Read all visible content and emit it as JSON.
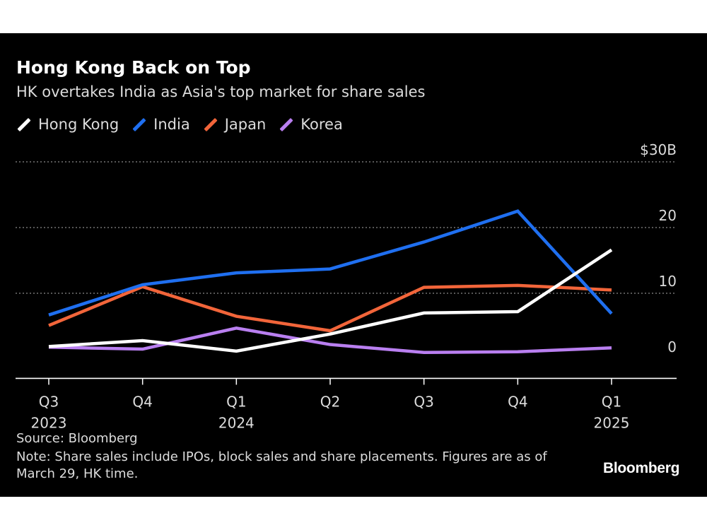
{
  "header": {
    "title": "Hong Kong Back on Top",
    "subtitle": "HK overtakes India as Asia's top market for share sales"
  },
  "footer": {
    "source": "Source: Bloomberg",
    "note": "Note: Share sales include IPOs, block sales and share placements. Figures are as of March 29, HK time.",
    "brand": "Bloomberg"
  },
  "chart_data": {
    "type": "line",
    "title": "Hong Kong Back on Top",
    "subtitle": "HK overtakes India as Asia's top market for share sales",
    "categories": [
      "Q3 2023",
      "Q4 2023",
      "Q1 2024",
      "Q2 2024",
      "Q3 2024",
      "Q4 2024",
      "Q1 2025"
    ],
    "x_tick_labels": [
      {
        "top": "Q3",
        "bottom": "2023"
      },
      {
        "top": "Q4",
        "bottom": ""
      },
      {
        "top": "Q1",
        "bottom": "2024"
      },
      {
        "top": "Q2",
        "bottom": ""
      },
      {
        "top": "Q3",
        "bottom": ""
      },
      {
        "top": "Q4",
        "bottom": ""
      },
      {
        "top": "Q1",
        "bottom": "2025"
      }
    ],
    "y_ticks": [
      {
        "value": 0,
        "label": "0"
      },
      {
        "value": 10,
        "label": "10"
      },
      {
        "value": 20,
        "label": "20"
      },
      {
        "value": 30,
        "label": "$30B"
      }
    ],
    "ylim": [
      -2,
      30
    ],
    "y_axis_side": "right",
    "grid": "horizontal dotted",
    "legend_position": "top-left",
    "background": "#000000",
    "series": [
      {
        "name": "Hong Kong",
        "color": "#ffffff",
        "values": [
          1.9,
          2.8,
          1.2,
          3.8,
          7.0,
          7.2,
          16.6
        ]
      },
      {
        "name": "India",
        "color": "#1f6ff0",
        "values": [
          6.7,
          11.3,
          13.1,
          13.7,
          17.8,
          22.5,
          6.9
        ]
      },
      {
        "name": "Japan",
        "color": "#f2653a",
        "values": [
          5.1,
          11.0,
          6.5,
          4.3,
          10.9,
          11.2,
          10.5
        ]
      },
      {
        "name": "Korea",
        "color": "#b97ff0",
        "values": [
          1.8,
          1.5,
          4.7,
          2.2,
          1.0,
          1.1,
          1.7
        ]
      }
    ]
  }
}
